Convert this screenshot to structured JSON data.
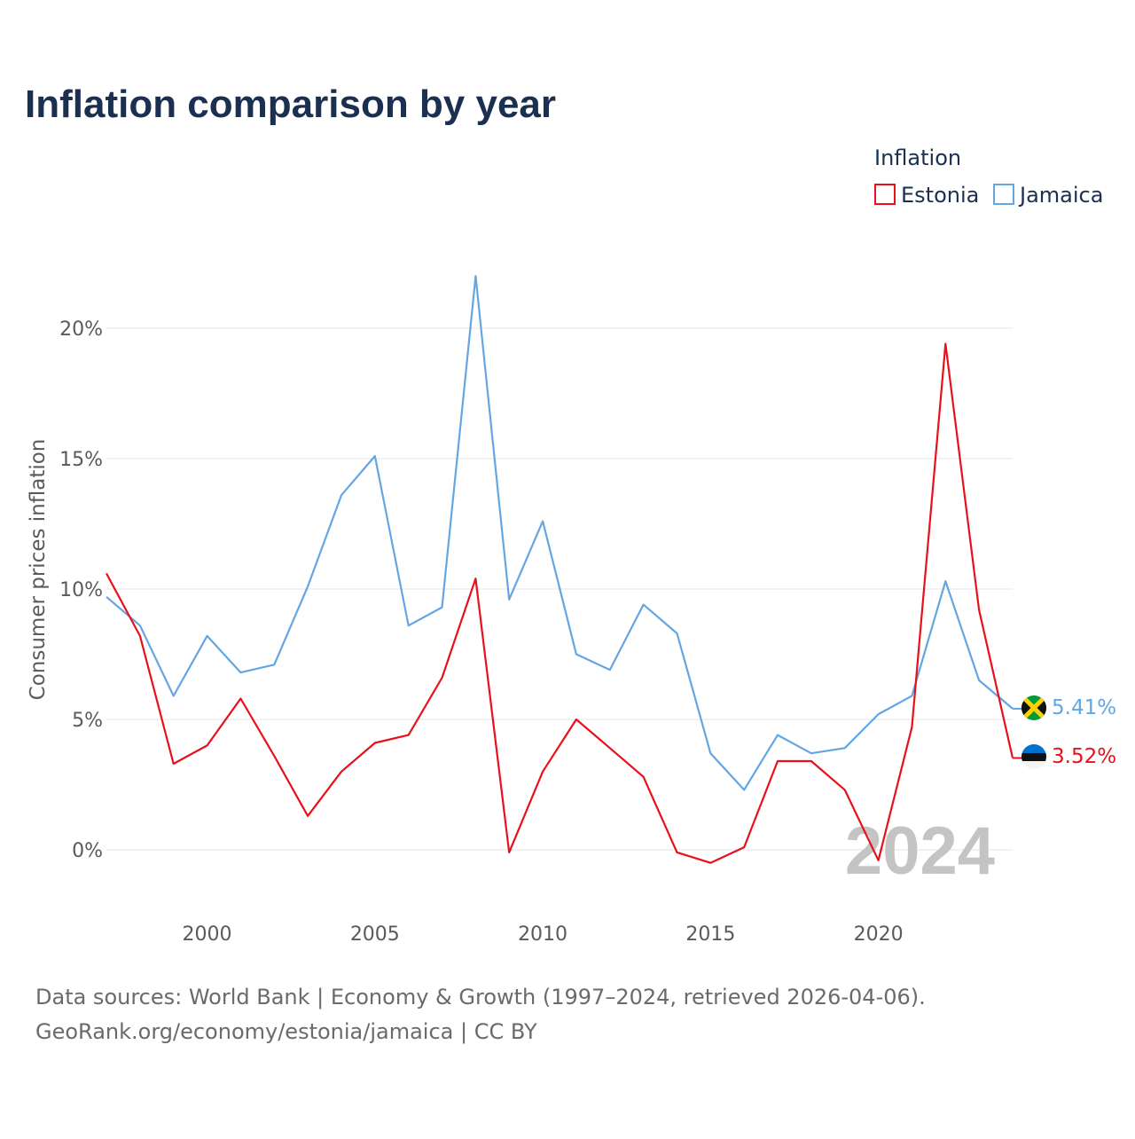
{
  "title": "Inflation comparison by year",
  "legend": {
    "title": "Inflation",
    "items": [
      {
        "label": "Estonia",
        "color": "#e8101a"
      },
      {
        "label": "Jamaica",
        "color": "#63a6e3"
      }
    ]
  },
  "year_watermark": "2024",
  "footer": {
    "line1": "Data sources: World Bank | Economy & Growth (1997–2024, retrieved 2026-04-06).",
    "line2": "GeoRank.org/economy/estonia/jamaica | CC BY"
  },
  "end_labels": {
    "jamaica": "5.41%",
    "estonia": "3.52%"
  },
  "flags": {
    "jamaica": "jamaica-flag-icon",
    "estonia": "estonia-flag-icon"
  },
  "chart_data": {
    "type": "line",
    "title": "Inflation comparison by year",
    "xlabel": "",
    "ylabel": "Consumer prices inflation",
    "x": [
      1997,
      1998,
      1999,
      2000,
      2001,
      2002,
      2003,
      2004,
      2005,
      2006,
      2007,
      2008,
      2009,
      2010,
      2011,
      2012,
      2013,
      2014,
      2015,
      2016,
      2017,
      2018,
      2019,
      2020,
      2021,
      2022,
      2023,
      2024
    ],
    "xlim": [
      1997,
      2024
    ],
    "ylim": [
      -2,
      22
    ],
    "x_ticks": [
      2000,
      2005,
      2010,
      2015,
      2020
    ],
    "y_ticks": [
      0,
      5,
      10,
      15,
      20
    ],
    "y_tick_labels": [
      "0%",
      "5%",
      "10%",
      "15%",
      "20%"
    ],
    "grid": true,
    "legend_position": "top-right",
    "series": [
      {
        "name": "Estonia",
        "color": "#e8101a",
        "values": [
          10.6,
          8.2,
          3.3,
          4.0,
          5.8,
          3.6,
          1.3,
          3.0,
          4.1,
          4.4,
          6.6,
          10.4,
          -0.1,
          3.0,
          5.0,
          3.9,
          2.8,
          -0.1,
          -0.5,
          0.1,
          3.4,
          3.4,
          2.3,
          -0.4,
          4.7,
          19.4,
          9.2,
          3.52
        ]
      },
      {
        "name": "Jamaica",
        "color": "#63a6e3",
        "values": [
          9.7,
          8.6,
          5.9,
          8.2,
          6.8,
          7.1,
          10.1,
          13.6,
          15.1,
          8.6,
          9.3,
          22.0,
          9.6,
          12.6,
          7.5,
          6.9,
          9.4,
          8.3,
          3.7,
          2.3,
          4.4,
          3.7,
          3.9,
          5.2,
          5.9,
          10.3,
          6.5,
          5.41
        ]
      }
    ]
  }
}
